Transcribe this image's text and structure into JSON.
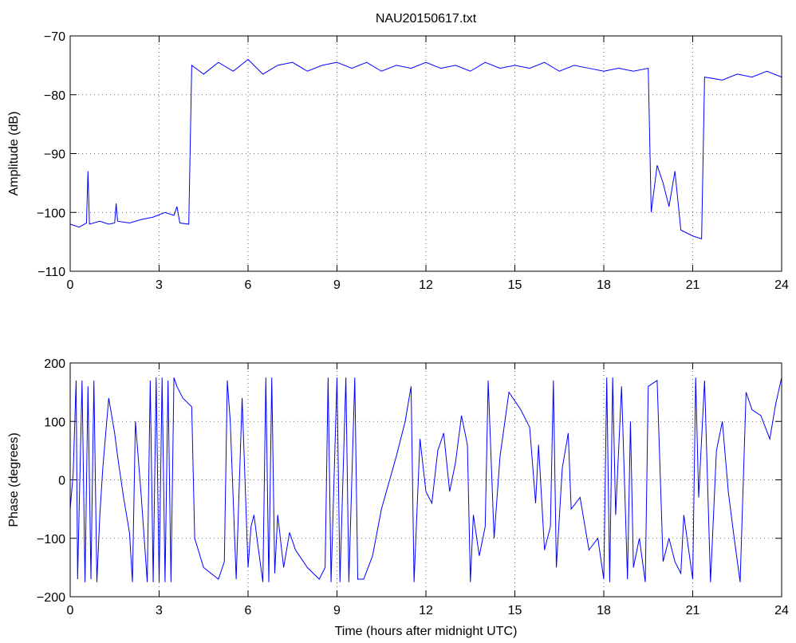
{
  "chart_data": [
    {
      "type": "line",
      "title": "NAU20150617.txt",
      "ylabel": "Amplitude (dB)",
      "xlim": [
        0,
        24
      ],
      "xticks": [
        0,
        3,
        6,
        9,
        12,
        15,
        18,
        21,
        24
      ],
      "ylim": [
        -110,
        -70
      ],
      "yticks": [
        {
          "value": -110,
          "label": "−110"
        },
        {
          "value": -100,
          "label": "−100"
        },
        {
          "value": -90,
          "label": "−90"
        },
        {
          "value": -80,
          "label": "−80"
        },
        {
          "value": -70,
          "label": "−70"
        }
      ],
      "grid": true,
      "series": [
        {
          "color": "#0000ff",
          "x": [
            0,
            0.3,
            0.55,
            0.6,
            0.65,
            1,
            1.3,
            1.5,
            1.55,
            1.6,
            2,
            2.4,
            2.8,
            3.2,
            3.5,
            3.6,
            3.7,
            4.0,
            4.1,
            4.5,
            5,
            5.5,
            6,
            6.5,
            7,
            7.5,
            8,
            8.5,
            9,
            9.5,
            10,
            10.5,
            11,
            11.5,
            12,
            12.5,
            13,
            13.5,
            14,
            14.5,
            15,
            15.5,
            16,
            16.5,
            17,
            17.5,
            18,
            18.5,
            19,
            19.5,
            19.6,
            19.8,
            20,
            20.2,
            20.4,
            20.6,
            21,
            21.3,
            21.4,
            22,
            22.5,
            23,
            23.5,
            24
          ],
          "values": [
            -102,
            -102.5,
            -101.8,
            -93,
            -102,
            -101.5,
            -102,
            -101.8,
            -98.5,
            -101.5,
            -101.8,
            -101.2,
            -100.8,
            -100,
            -100.5,
            -99,
            -101.8,
            -102,
            -75,
            -76.5,
            -74.5,
            -76,
            -74,
            -76.5,
            -75,
            -74.5,
            -76,
            -75,
            -74.5,
            -75.5,
            -74.5,
            -76,
            -75,
            -75.5,
            -74.5,
            -75.5,
            -75,
            -76,
            -74.5,
            -75.5,
            -75,
            -75.5,
            -74.5,
            -76,
            -75,
            -75.5,
            -76,
            -75.5,
            -76,
            -75.5,
            -100,
            -92,
            -95,
            -99,
            -93,
            -103,
            -104,
            -104.5,
            -77,
            -77.5,
            -76.5,
            -77,
            -76,
            -77
          ]
        }
      ]
    },
    {
      "type": "line",
      "ylabel": "Phase (degrees)",
      "xlabel": "Time (hours after midnight UTC)",
      "xlim": [
        0,
        24
      ],
      "xticks": [
        0,
        3,
        6,
        9,
        12,
        15,
        18,
        21,
        24
      ],
      "ylim": [
        -200,
        200
      ],
      "yticks": [
        {
          "value": -200,
          "label": "−200"
        },
        {
          "value": -100,
          "label": "−100"
        },
        0,
        100,
        200
      ],
      "grid": true,
      "series": [
        {
          "color": "#0000ff",
          "x": [
            0,
            0.1,
            0.2,
            0.25,
            0.4,
            0.5,
            0.6,
            0.7,
            0.8,
            0.9,
            1.0,
            1.1,
            1.3,
            1.5,
            1.6,
            1.8,
            2.0,
            2.1,
            2.2,
            2.4,
            2.6,
            2.7,
            2.8,
            2.9,
            3.0,
            3.1,
            3.2,
            3.3,
            3.4,
            3.5,
            3.6,
            3.8,
            4.1,
            4.2,
            4.5,
            5.0,
            5.2,
            5.3,
            5.4,
            5.6,
            5.8,
            6.0,
            6.1,
            6.2,
            6.3,
            6.5,
            6.6,
            6.7,
            6.8,
            6.9,
            7.0,
            7.2,
            7.4,
            7.6,
            8.0,
            8.4,
            8.6,
            8.7,
            8.8,
            9.0,
            9.1,
            9.3,
            9.4,
            9.6,
            9.7,
            9.9,
            10.2,
            10.5,
            11,
            11.3,
            11.5,
            11.6,
            11.8,
            12,
            12.2,
            12.4,
            12.6,
            12.8,
            13,
            13.2,
            13.4,
            13.5,
            13.6,
            13.8,
            14.0,
            14.1,
            14.3,
            14.5,
            14.8,
            15.2,
            15.5,
            15.7,
            15.8,
            16,
            16.2,
            16.3,
            16.4,
            16.6,
            16.8,
            16.9,
            17.2,
            17.5,
            17.8,
            18.0,
            18.1,
            18.2,
            18.3,
            18.4,
            18.6,
            18.8,
            18.9,
            19.0,
            19.2,
            19.4,
            19.5,
            19.8,
            20,
            20.2,
            20.4,
            20.6,
            20.7,
            21,
            21.1,
            21.2,
            21.4,
            21.6,
            21.8,
            22,
            22.2,
            22.4,
            22.6,
            22.8,
            23.0,
            23.3,
            23.6,
            23.8,
            24
          ],
          "values": [
            -50,
            10,
            170,
            -170,
            170,
            -175,
            160,
            -170,
            170,
            -175,
            -60,
            20,
            140,
            80,
            40,
            -30,
            -90,
            -175,
            100,
            -30,
            -175,
            170,
            -175,
            175,
            -175,
            175,
            -175,
            170,
            -175,
            175,
            160,
            140,
            125,
            -100,
            -150,
            -170,
            -140,
            170,
            100,
            -170,
            140,
            -150,
            -80,
            -60,
            -100,
            -175,
            175,
            -175,
            175,
            -160,
            -60,
            -150,
            -90,
            -120,
            -150,
            -170,
            -150,
            175,
            -175,
            175,
            -175,
            175,
            -175,
            175,
            -170,
            -170,
            -130,
            -50,
            40,
            100,
            160,
            -175,
            70,
            -20,
            -40,
            50,
            80,
            -20,
            30,
            110,
            60,
            -175,
            -60,
            -130,
            -80,
            170,
            -100,
            40,
            150,
            120,
            90,
            -40,
            60,
            -120,
            -80,
            170,
            -150,
            20,
            80,
            -50,
            -30,
            -120,
            -100,
            -170,
            175,
            -175,
            175,
            -60,
            160,
            -170,
            100,
            -150,
            -100,
            -175,
            160,
            170,
            -140,
            -100,
            -140,
            -160,
            -60,
            -170,
            175,
            -30,
            170,
            -175,
            50,
            100,
            -20,
            -100,
            -175,
            150,
            120,
            110,
            70,
            130,
            175
          ]
        }
      ]
    }
  ]
}
